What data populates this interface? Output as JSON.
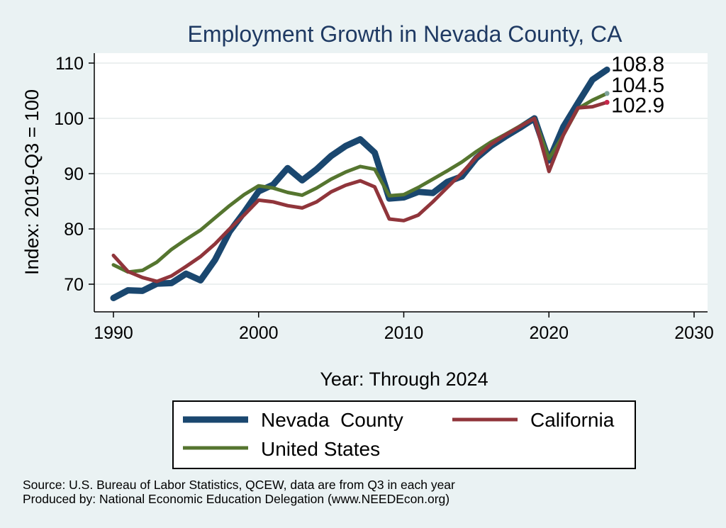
{
  "chart_data": {
    "type": "line",
    "title": "Employment Growth in Nevada County, CA",
    "xlabel": "Year: Through 2024",
    "ylabel": "Index: 2019-Q3 = 100",
    "xlim": [
      1990,
      2030
    ],
    "ylim": [
      65,
      112
    ],
    "xticks": [
      "1990",
      "2000",
      "2010",
      "2020",
      "2030"
    ],
    "yticks": [
      "70",
      "80",
      "90",
      "100",
      "110"
    ],
    "grid": "horizontal",
    "legend_position": "bottom",
    "x": [
      1990,
      1991,
      1992,
      1993,
      1994,
      1995,
      1996,
      1997,
      1998,
      1999,
      2000,
      2001,
      2002,
      2003,
      2004,
      2005,
      2006,
      2007,
      2008,
      2009,
      2010,
      2011,
      2012,
      2013,
      2014,
      2015,
      2016,
      2017,
      2018,
      2019,
      2020,
      2021,
      2022,
      2023,
      2024
    ],
    "series": [
      {
        "name": "Nevada  County",
        "color": "#1a476f",
        "values": [
          67.5,
          68.9,
          68.8,
          70.1,
          70.2,
          71.9,
          70.7,
          74.4,
          79.5,
          83.0,
          86.8,
          88.0,
          91.0,
          88.8,
          90.8,
          93.2,
          95.0,
          96.2,
          93.8,
          85.5,
          85.7,
          86.7,
          86.5,
          88.5,
          89.5,
          92.8,
          95.0,
          96.7,
          98.3,
          100.0,
          92.4,
          98.5,
          102.8,
          107.0,
          108.8
        ],
        "end_label": "108.8"
      },
      {
        "name": "California",
        "color": "#90353b",
        "values": [
          75.2,
          72.3,
          71.2,
          70.5,
          71.5,
          73.2,
          75.0,
          77.3,
          80.0,
          82.5,
          85.2,
          84.9,
          84.2,
          83.8,
          84.9,
          86.7,
          87.9,
          88.7,
          87.6,
          81.8,
          81.5,
          82.5,
          84.9,
          87.5,
          90.1,
          93.0,
          95.3,
          97.0,
          98.5,
          100.0,
          90.4,
          97.0,
          101.9,
          102.1,
          102.9
        ],
        "end_label": "102.9"
      },
      {
        "name": "United States",
        "color": "#55752f",
        "values": [
          73.5,
          72.2,
          72.5,
          74.0,
          76.3,
          78.1,
          79.8,
          82.0,
          84.2,
          86.2,
          87.8,
          87.4,
          86.6,
          86.1,
          87.4,
          89.0,
          90.3,
          91.3,
          90.8,
          86.0,
          86.2,
          87.5,
          89.0,
          90.5,
          92.1,
          94.0,
          95.7,
          97.1,
          98.6,
          100.0,
          92.7,
          97.0,
          101.8,
          103.3,
          104.5
        ],
        "end_label": "104.5"
      }
    ]
  },
  "footnotes": [
    "Source: U.S. Bureau of Labor Statistics, QCEW, data are from Q3 in each year",
    "Produced by: National Economic Education Delegation (www.NEEDEcon.org)"
  ]
}
